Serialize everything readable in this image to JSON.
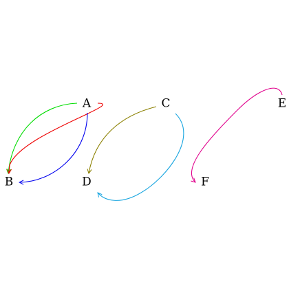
{
  "diagram": {
    "nodes": [
      {
        "id": "A",
        "label": "A"
      },
      {
        "id": "B",
        "label": "B"
      },
      {
        "id": "C",
        "label": "C"
      },
      {
        "id": "D",
        "label": "D"
      },
      {
        "id": "E",
        "label": "E"
      },
      {
        "id": "F",
        "label": "F"
      }
    ],
    "edges": [
      {
        "from": "A",
        "to": "B",
        "color": "#00dd00",
        "name": "edge-a-b-green"
      },
      {
        "from": "A",
        "to": "B",
        "color": "#ee0000",
        "name": "edge-a-b-red"
      },
      {
        "from": "A",
        "to": "B",
        "color": "#0000ee",
        "name": "edge-a-b-blue"
      },
      {
        "from": "C",
        "to": "D",
        "color": "#8b8000",
        "name": "edge-c-d-olive"
      },
      {
        "from": "C",
        "to": "D",
        "color": "#1aa6e0",
        "name": "edge-c-d-cyan"
      },
      {
        "from": "E",
        "to": "F",
        "color": "#e0008c",
        "name": "edge-e-f-magenta"
      }
    ]
  }
}
